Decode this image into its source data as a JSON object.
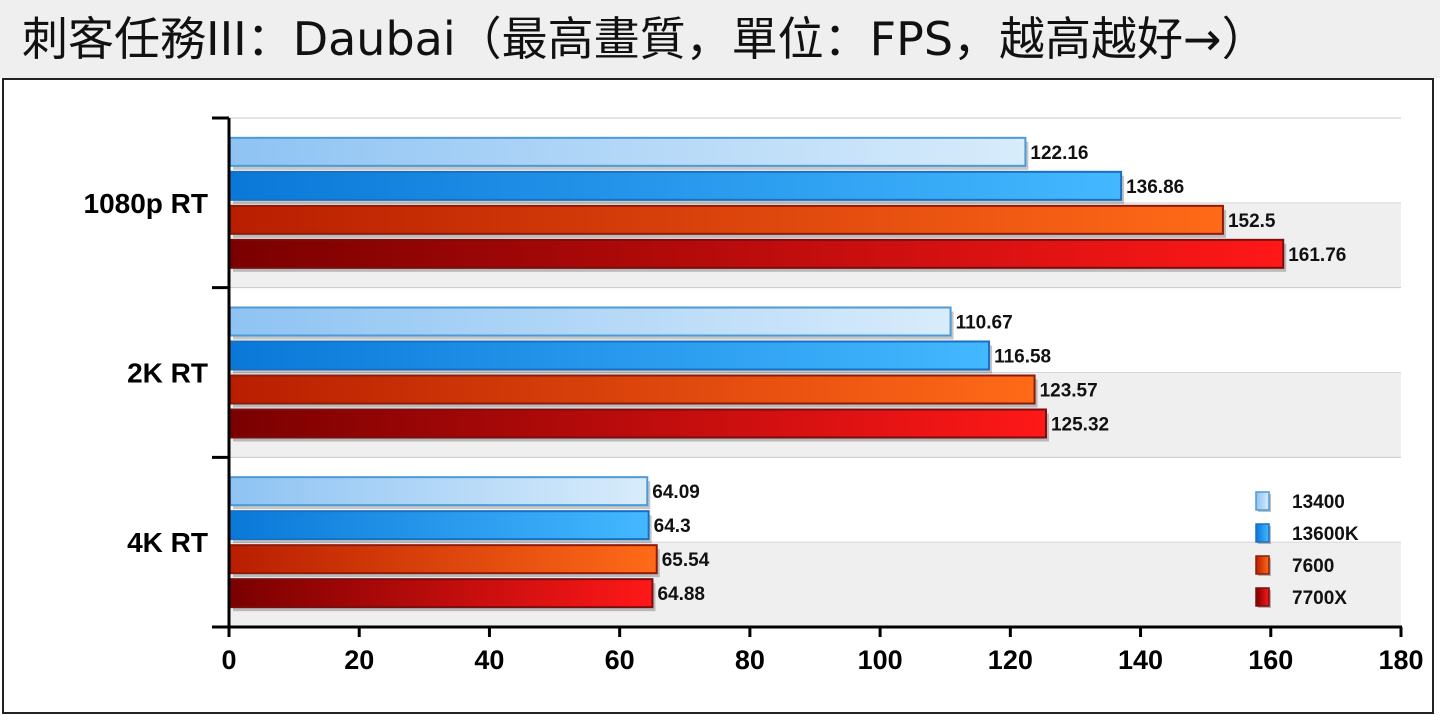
{
  "title": "刺客任務III：Daubai（最高畫質，單位：FPS，越高越好→）",
  "chart_data": {
    "type": "bar",
    "orientation": "horizontal",
    "categories": [
      "1080p RT",
      "2K RT",
      "4K RT"
    ],
    "series": [
      {
        "name": "13400",
        "values": [
          122.16,
          110.67,
          64.09
        ],
        "colors": [
          "#8ec3f3",
          "#d8ecfb"
        ],
        "border": "#4d9ad6"
      },
      {
        "name": "13600K",
        "values": [
          136.86,
          116.58,
          64.3
        ],
        "colors": [
          "#0a78d8",
          "#44b8ff"
        ],
        "border": "#1c6fc0"
      },
      {
        "name": "7600",
        "values": [
          152.5,
          123.57,
          65.54
        ],
        "colors": [
          "#b81e00",
          "#ff6a18"
        ],
        "border": "#8e1a0a"
      },
      {
        "name": "7700X",
        "values": [
          161.76,
          125.32,
          64.88
        ],
        "colors": [
          "#7a0000",
          "#ff1818"
        ],
        "border": "#7a0d0d"
      }
    ],
    "value_labels": [
      [
        "122.16",
        "110.67",
        "64.09"
      ],
      [
        "136.86",
        "116.58",
        "64.3"
      ],
      [
        "152.5",
        "123.57",
        "65.54"
      ],
      [
        "161.76",
        "125.32",
        "64.88"
      ]
    ],
    "xlim": [
      0,
      180
    ],
    "xticks": [
      0,
      20,
      40,
      60,
      80,
      100,
      120,
      140,
      160,
      180
    ],
    "xtick_labels": [
      "0",
      "20",
      "40",
      "60",
      "80",
      "100",
      "120",
      "140",
      "160",
      "180"
    ],
    "grid": true,
    "legend_position": "right"
  }
}
